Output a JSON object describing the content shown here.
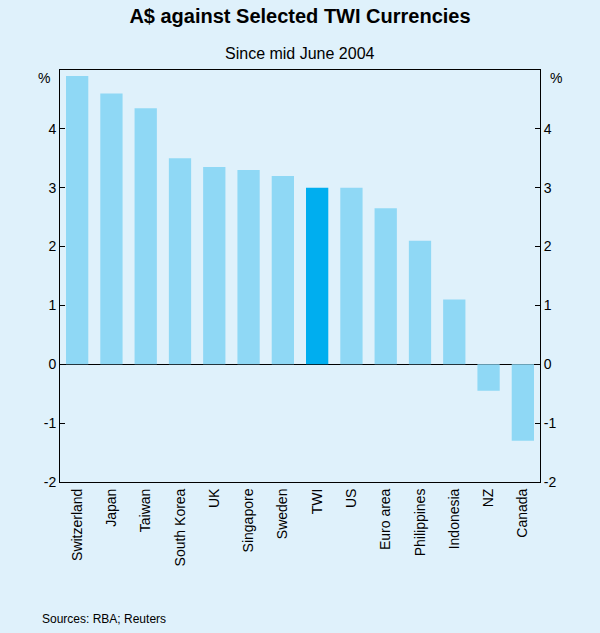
{
  "chart_data": {
    "type": "bar",
    "title": "A$ against Selected TWI Currencies",
    "subtitle": "Since mid June 2004",
    "ylabel": "%",
    "source": "Sources: RBA; Reuters",
    "categories": [
      "Switzerland",
      "Japan",
      "Taiwan",
      "South Korea",
      "UK",
      "Singapore",
      "Sweden",
      "TWI",
      "US",
      "Euro area",
      "Philippines",
      "Indonesia",
      "NZ",
      "Canada"
    ],
    "values": [
      4.9,
      4.6,
      4.35,
      3.5,
      3.35,
      3.3,
      3.2,
      3.0,
      3.0,
      2.65,
      2.1,
      1.1,
      -0.45,
      -1.3
    ],
    "colors": [
      "#8fd8f5",
      "#8fd8f5",
      "#8fd8f5",
      "#8fd8f5",
      "#8fd8f5",
      "#8fd8f5",
      "#8fd8f5",
      "#00aeef",
      "#8fd8f5",
      "#8fd8f5",
      "#8fd8f5",
      "#8fd8f5",
      "#8fd8f5",
      "#8fd8f5"
    ],
    "ylim": [
      -2,
      5
    ],
    "yticks": [
      -2,
      -1,
      0,
      1,
      2,
      3,
      4
    ],
    "grid": false
  }
}
